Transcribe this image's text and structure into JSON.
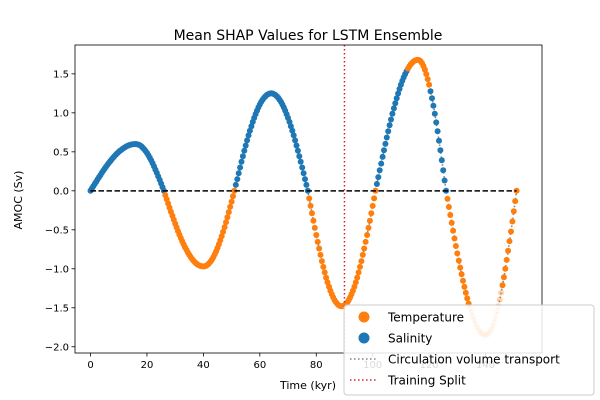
{
  "chart_data": {
    "type": "scatter",
    "title": "Mean SHAP Values for LSTM Ensemble",
    "xlabel": "Time (kyr)",
    "ylabel": "AMOC (Sv)",
    "xlim": [
      -5.5,
      160
    ],
    "ylim": [
      -2.08,
      1.87
    ],
    "x_ticks": [
      0,
      20,
      40,
      60,
      80,
      100,
      120,
      140
    ],
    "y_ticks": [
      -2.0,
      -1.5,
      -1.0,
      -0.5,
      0.0,
      0.5,
      1.0,
      1.5
    ],
    "y_tick_labels": [
      "−2.0",
      "−1.5",
      "−1.0",
      "−0.5",
      "0.0",
      "0.5",
      "1.0",
      "1.5"
    ],
    "zero_line": {
      "y": 0,
      "style": "dashed",
      "color": "#000000"
    },
    "training_split": {
      "x": 90,
      "color": "#d62728"
    },
    "legend_position": "bottom-right",
    "legend": [
      {
        "label": "Temperature",
        "kind": "marker",
        "color": "#ff7f0e"
      },
      {
        "label": "Salinity",
        "kind": "marker",
        "color": "#1f77b4"
      },
      {
        "label": "Circulation volume transport",
        "kind": "dotted-line",
        "color": "#808080"
      },
      {
        "label": "Training Split",
        "kind": "dotted-line",
        "color": "#d62728"
      }
    ],
    "colors": {
      "temperature": "#ff7f0e",
      "salinity": "#1f77b4",
      "transport": "#808080"
    },
    "segments": [
      {
        "feature": "salinity",
        "x_start": 0,
        "x_end": 26,
        "peak_x": 16,
        "peak_y": 0.6
      },
      {
        "feature": "temperature",
        "x_start": 26,
        "x_end": 51,
        "peak_x": 40,
        "peak_y": -0.97
      },
      {
        "feature": "salinity",
        "x_start": 51,
        "x_end": 77,
        "peak_x": 64,
        "peak_y": 1.25
      },
      {
        "feature": "temperature",
        "x_start": 77,
        "x_end": 101,
        "peak_x": 89,
        "peak_y": -1.48
      },
      {
        "feature": "salinity",
        "x_start": 101,
        "x_end": 112,
        "peak_x": 116,
        "peak_y": 1.68
      },
      {
        "feature": "temperature",
        "x_start": 112,
        "x_end": 120,
        "peak_x": 116,
        "peak_y": 1.68
      },
      {
        "feature": "salinity",
        "x_start": 120,
        "x_end": 126,
        "peak_x": 116,
        "peak_y": 1.68
      },
      {
        "feature": "temperature",
        "x_start": 126,
        "x_end": 151,
        "peak_x": 140,
        "peak_y": -1.85
      }
    ]
  }
}
